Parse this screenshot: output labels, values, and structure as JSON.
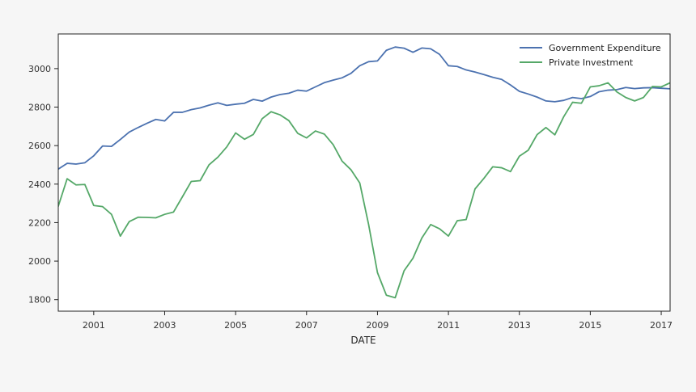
{
  "chart_data": {
    "type": "line",
    "title": "",
    "xlabel": "DATE",
    "ylabel": "",
    "xlim": [
      2000.0,
      2017.25
    ],
    "ylim": [
      1740,
      3180
    ],
    "grid": false,
    "legend_position": "top-right",
    "x_ticks": [
      2001,
      2003,
      2005,
      2007,
      2009,
      2011,
      2013,
      2015,
      2017
    ],
    "x_tick_labels": [
      "2001",
      "2003",
      "2005",
      "2007",
      "2009",
      "2011",
      "2013",
      "2015",
      "2017"
    ],
    "y_ticks": [
      1800,
      2000,
      2200,
      2400,
      2600,
      2800,
      3000
    ],
    "y_tick_labels": [
      "1800",
      "2000",
      "2200",
      "2400",
      "2600",
      "2800",
      "3000"
    ],
    "x": [
      2000.0,
      2000.25,
      2000.5,
      2000.75,
      2001.0,
      2001.25,
      2001.5,
      2001.75,
      2002.0,
      2002.25,
      2002.5,
      2002.75,
      2003.0,
      2003.25,
      2003.5,
      2003.75,
      2004.0,
      2004.25,
      2004.5,
      2004.75,
      2005.0,
      2005.25,
      2005.5,
      2005.75,
      2006.0,
      2006.25,
      2006.5,
      2006.75,
      2007.0,
      2007.25,
      2007.5,
      2007.75,
      2008.0,
      2008.25,
      2008.5,
      2008.75,
      2009.0,
      2009.25,
      2009.5,
      2009.75,
      2010.0,
      2010.25,
      2010.5,
      2010.75,
      2011.0,
      2011.25,
      2011.5,
      2011.75,
      2012.0,
      2012.25,
      2012.5,
      2012.75,
      2013.0,
      2013.25,
      2013.5,
      2013.75,
      2014.0,
      2014.25,
      2014.5,
      2014.75,
      2015.0,
      2015.25,
      2015.5,
      2015.75,
      2016.0,
      2016.25,
      2016.5,
      2016.75,
      2017.0,
      2017.25
    ],
    "series": [
      {
        "name": "Government Expenditure",
        "color": "#4c72b0",
        "values": [
          2478,
          2508,
          2504,
          2511,
          2547,
          2598,
          2596,
          2632,
          2670,
          2694,
          2716,
          2736,
          2728,
          2773,
          2773,
          2787,
          2796,
          2810,
          2822,
          2809,
          2815,
          2820,
          2840,
          2831,
          2852,
          2865,
          2872,
          2888,
          2883,
          2905,
          2927,
          2940,
          2952,
          2975,
          3015,
          3036,
          3040,
          3095,
          3112,
          3106,
          3085,
          3107,
          3103,
          3074,
          3015,
          3011,
          2993,
          2982,
          2969,
          2955,
          2944,
          2915,
          2882,
          2868,
          2852,
          2832,
          2828,
          2835,
          2850,
          2844,
          2855,
          2880,
          2888,
          2891,
          2902,
          2896,
          2900,
          2901,
          2898,
          2895
        ]
      },
      {
        "name": "Private Investment",
        "color": "#55a868",
        "values": [
          2285,
          2428,
          2396,
          2398,
          2289,
          2283,
          2243,
          2130,
          2205,
          2228,
          2227,
          2225,
          2243,
          2255,
          2334,
          2414,
          2418,
          2500,
          2540,
          2593,
          2666,
          2633,
          2658,
          2740,
          2776,
          2760,
          2730,
          2664,
          2640,
          2676,
          2660,
          2605,
          2520,
          2475,
          2406,
          2190,
          1940,
          1823,
          1810,
          1950,
          2015,
          2120,
          2190,
          2168,
          2130,
          2210,
          2216,
          2375,
          2430,
          2490,
          2485,
          2465,
          2545,
          2576,
          2657,
          2694,
          2656,
          2750,
          2825,
          2820,
          2905,
          2911,
          2926,
          2879,
          2850,
          2832,
          2850,
          2907,
          2905,
          2926
        ]
      }
    ]
  }
}
